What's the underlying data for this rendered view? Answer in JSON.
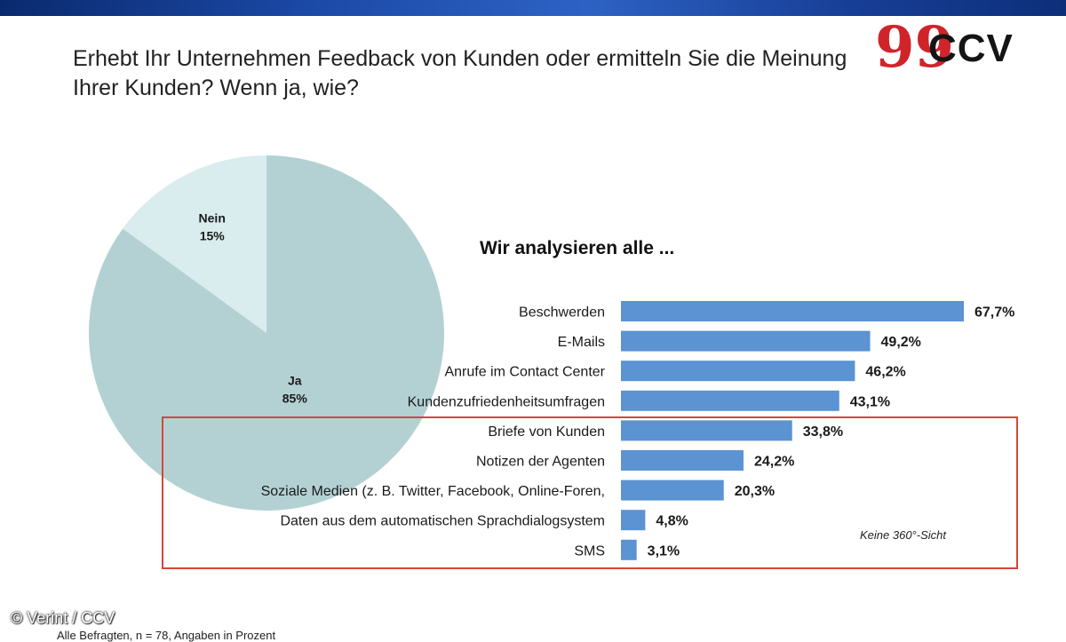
{
  "title": "Erhebt Ihr Unternehmen Feedback von Kunden oder ermitteln Sie die Meinung Ihrer Kunden? Wenn ja, wie?",
  "logo": {
    "quote": "99",
    "text": "CCV"
  },
  "credit": "© Verint / CCV",
  "footer": "Alle Befragten, n = 78, Angaben in Prozent",
  "colors": {
    "pie_yes": "#b3d1d3",
    "pie_no": "#d9ecee",
    "bar": "#5b93d3",
    "highlight": "#d6463a"
  },
  "chart_data": [
    {
      "type": "pie",
      "slices": [
        {
          "label": "Nein",
          "value": 15,
          "display": "15%"
        },
        {
          "label": "Ja",
          "value": 85,
          "display": "85%"
        }
      ]
    },
    {
      "type": "bar",
      "orientation": "horizontal",
      "title": "Wir analysieren alle ...",
      "categories": [
        "Beschwerden",
        "E-Mails",
        "Anrufe im Contact Center",
        "Kundenzufriedenheitsumfragen",
        "Briefe von Kunden",
        "Notizen der Agenten",
        "Soziale Medien (z. B. Twitter, Facebook, Online-Foren,",
        "Daten aus dem automatischen Sprachdialogsystem",
        "SMS"
      ],
      "values": [
        67.7,
        49.2,
        46.2,
        43.1,
        33.8,
        24.2,
        20.3,
        4.8,
        3.1
      ],
      "value_labels": [
        "67,7%",
        "49,2%",
        "46,2%",
        "43,1%",
        "33,8%",
        "24,2%",
        "20,3%",
        "4,8%",
        "3,1%"
      ],
      "highlight_from_index": 4,
      "highlight_note": "Keine 360°-Sicht"
    }
  ]
}
